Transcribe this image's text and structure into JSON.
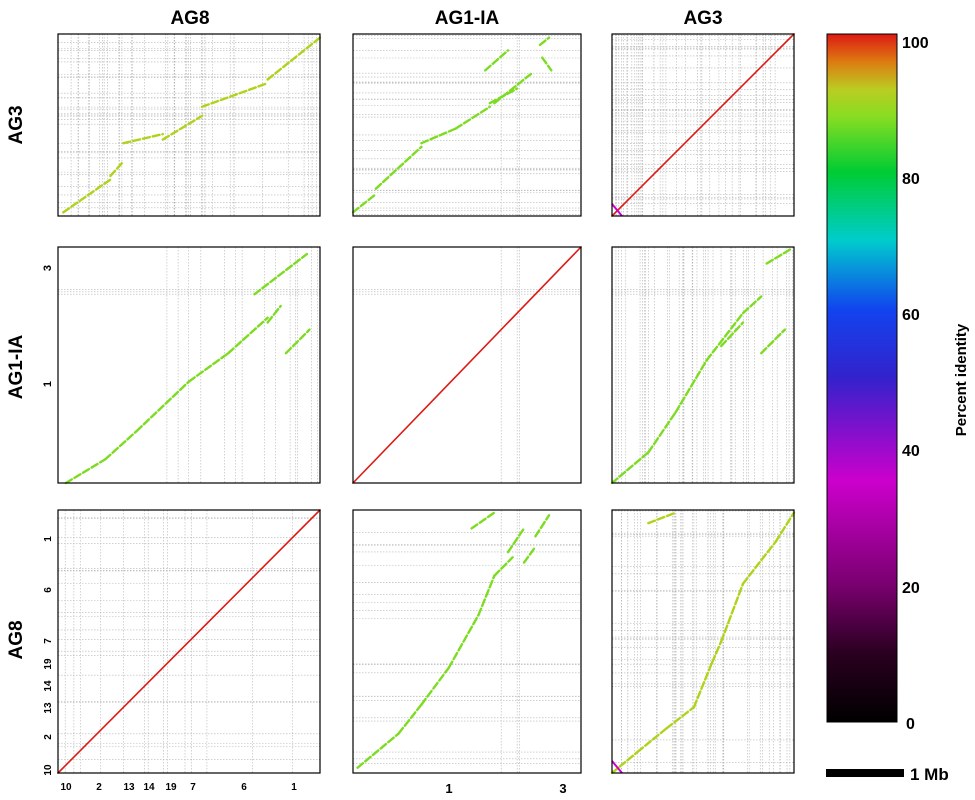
{
  "figure": {
    "column_headers": [
      "AG8",
      "AG1-IA",
      "AG3"
    ],
    "row_headers": [
      "AG3",
      "AG1-IA",
      "AG8"
    ],
    "colorbar": {
      "label": "Percent identity",
      "ticks": [
        "100",
        "80",
        "60",
        "40",
        "20",
        "0"
      ],
      "range": [
        0,
        100
      ]
    },
    "scale_bar": {
      "label": "1 Mb"
    },
    "x_tick_labels": {
      "AG8": [
        "10",
        "2",
        "13",
        "14",
        "19",
        "7",
        "6",
        "1"
      ],
      "AG1-IA": [
        "1",
        "3"
      ]
    },
    "y_tick_labels": {
      "AG1-IA": [
        "3",
        "1"
      ],
      "AG8": [
        "1",
        "6",
        "7",
        "19",
        "14",
        "13",
        "2",
        "10"
      ]
    },
    "colors": {
      "identity_100": "#dd1a14",
      "identity_90": "#aed31a",
      "identity_85": "#7ddc22",
      "identity_80": "#22cc22",
      "identity_40": "#cc00cc",
      "grid": "#b5b5b5"
    }
  },
  "chart_data": {
    "type": "scatter",
    "description_type": "dot plot matrix",
    "panels": [
      {
        "row": "AG3",
        "col": "AG8",
        "identity": 90,
        "segments": [
          [
            0.02,
            0.02,
            0.2,
            0.2
          ],
          [
            0.2,
            0.22,
            0.25,
            0.3
          ],
          [
            0.25,
            0.4,
            0.4,
            0.45
          ],
          [
            0.4,
            0.42,
            0.55,
            0.55
          ],
          [
            0.55,
            0.6,
            0.8,
            0.73
          ],
          [
            0.8,
            0.75,
            1.0,
            0.98
          ]
        ]
      },
      {
        "row": "AG3",
        "col": "AG1-IA",
        "identity": 85,
        "segments": [
          [
            0.0,
            0.02,
            0.1,
            0.12
          ],
          [
            0.1,
            0.15,
            0.3,
            0.38
          ],
          [
            0.3,
            0.4,
            0.45,
            0.48
          ],
          [
            0.45,
            0.48,
            0.6,
            0.6
          ],
          [
            0.6,
            0.62,
            0.72,
            0.7
          ],
          [
            0.58,
            0.8,
            0.68,
            0.91
          ],
          [
            0.62,
            0.62,
            0.78,
            0.78
          ],
          [
            0.82,
            0.94,
            0.86,
            0.98
          ],
          [
            0.83,
            0.87,
            0.87,
            0.8
          ]
        ]
      },
      {
        "row": "AG3",
        "col": "AG3",
        "identity": 100,
        "segments": [
          [
            0.0,
            0.0,
            1.0,
            1.0
          ]
        ]
      },
      {
        "row": "AG1-IA",
        "col": "AG8",
        "identity": 85,
        "segments": [
          [
            0.03,
            0.0,
            0.18,
            0.1
          ],
          [
            0.18,
            0.1,
            0.3,
            0.22
          ],
          [
            0.3,
            0.22,
            0.5,
            0.43
          ],
          [
            0.5,
            0.43,
            0.65,
            0.55
          ],
          [
            0.65,
            0.55,
            0.8,
            0.7
          ],
          [
            0.75,
            0.8,
            0.95,
            0.97
          ],
          [
            0.87,
            0.55,
            0.96,
            0.65
          ],
          [
            0.8,
            0.68,
            0.85,
            0.75
          ]
        ]
      },
      {
        "row": "AG1-IA",
        "col": "AG1-IA",
        "identity": 100,
        "segments": [
          [
            0.0,
            0.0,
            1.0,
            1.0
          ]
        ]
      },
      {
        "row": "AG1-IA",
        "col": "AG3",
        "identity": 85,
        "segments": [
          [
            0.0,
            0.0,
            0.2,
            0.13
          ],
          [
            0.2,
            0.13,
            0.35,
            0.3
          ],
          [
            0.35,
            0.3,
            0.52,
            0.52
          ],
          [
            0.52,
            0.52,
            0.72,
            0.72
          ],
          [
            0.72,
            0.72,
            0.82,
            0.79
          ],
          [
            0.85,
            0.93,
            0.98,
            0.99
          ],
          [
            0.82,
            0.55,
            0.95,
            0.65
          ],
          [
            0.6,
            0.58,
            0.72,
            0.68
          ]
        ]
      },
      {
        "row": "AG8",
        "col": "AG8",
        "identity": 100,
        "segments": [
          [
            0.0,
            0.0,
            1.0,
            1.0
          ]
        ]
      },
      {
        "row": "AG8",
        "col": "AG1-IA",
        "identity": 85,
        "segments": [
          [
            0.02,
            0.02,
            0.2,
            0.15
          ],
          [
            0.2,
            0.15,
            0.3,
            0.26
          ],
          [
            0.3,
            0.26,
            0.42,
            0.4
          ],
          [
            0.42,
            0.4,
            0.55,
            0.6
          ],
          [
            0.55,
            0.6,
            0.62,
            0.75
          ],
          [
            0.62,
            0.75,
            0.7,
            0.82
          ],
          [
            0.52,
            0.93,
            0.62,
            0.99
          ],
          [
            0.68,
            0.84,
            0.75,
            0.93
          ],
          [
            0.75,
            0.8,
            0.8,
            0.86
          ],
          [
            0.8,
            0.9,
            0.86,
            0.98
          ]
        ]
      },
      {
        "row": "AG8",
        "col": "AG3",
        "identity": 90,
        "segments": [
          [
            0.0,
            0.0,
            0.14,
            0.08
          ],
          [
            0.14,
            0.08,
            0.3,
            0.17
          ],
          [
            0.3,
            0.17,
            0.45,
            0.25
          ],
          [
            0.45,
            0.25,
            0.55,
            0.42
          ],
          [
            0.55,
            0.42,
            0.6,
            0.5
          ],
          [
            0.6,
            0.5,
            0.72,
            0.72
          ],
          [
            0.72,
            0.72,
            0.9,
            0.88
          ],
          [
            0.9,
            0.88,
            1.0,
            0.99
          ],
          [
            0.2,
            0.95,
            0.35,
            0.99
          ]
        ]
      }
    ]
  }
}
